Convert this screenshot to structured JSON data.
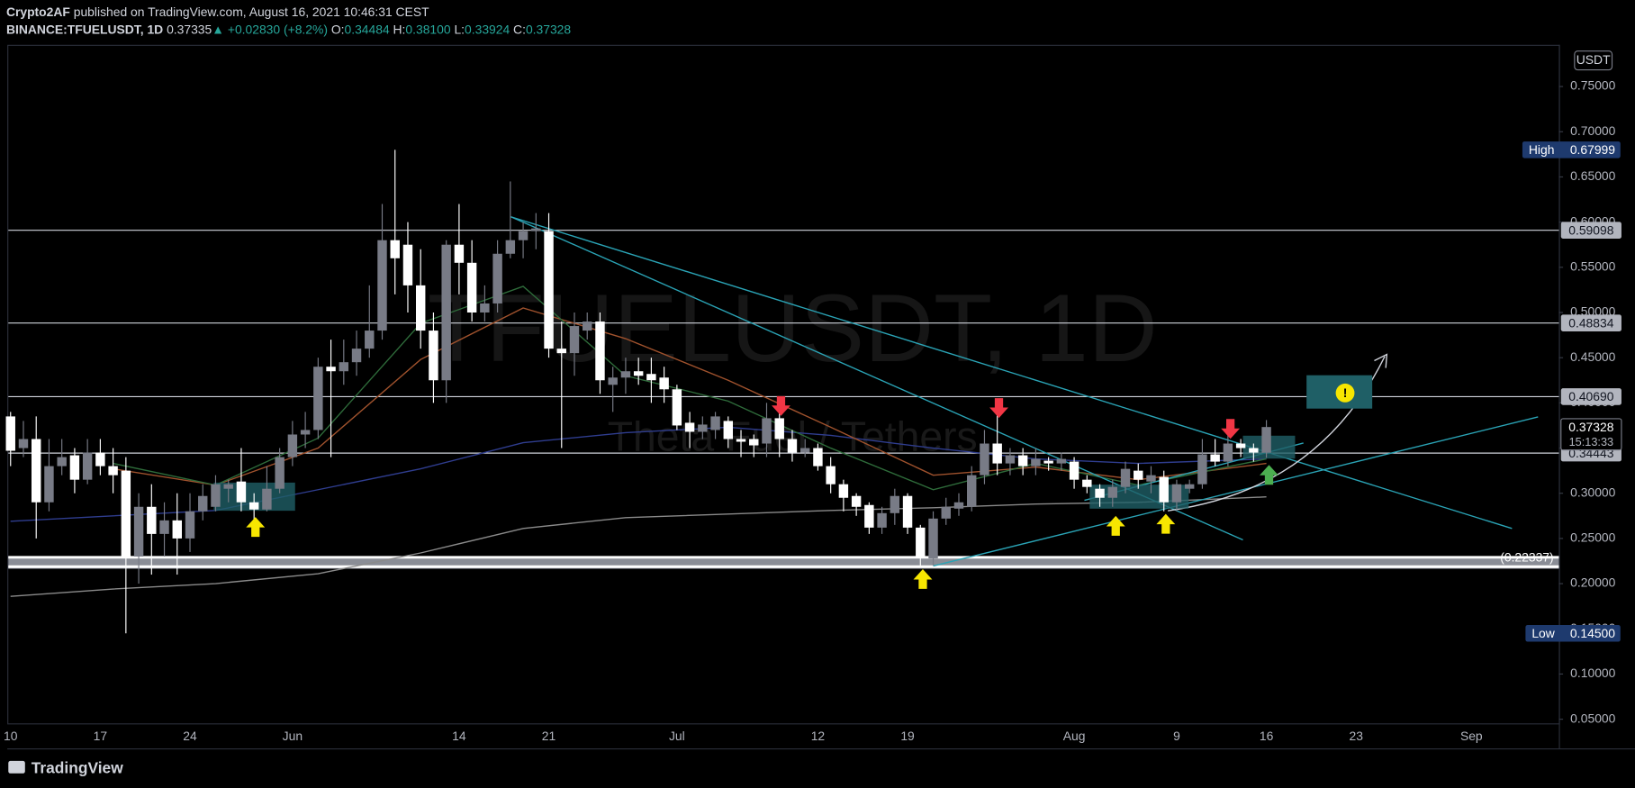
{
  "header": {
    "author": "Crypto2AF",
    "published": "published on TradingView.com, August 16, 2021 10:46:31 CEST",
    "symbol": "BINANCE:TFUELUSDT, 1D",
    "last": "0.37335",
    "arrow": "▲",
    "change": "+0.02830 (+8.2%)",
    "ohlc": [
      {
        "label": "O:",
        "value": "0.34484"
      },
      {
        "label": "H:",
        "value": "0.38100"
      },
      {
        "label": "L:",
        "value": "0.33924"
      },
      {
        "label": "C:",
        "value": "0.37328"
      }
    ]
  },
  "watermark": {
    "symbol": "TFUELUSDT, 1D",
    "name": "Theta Fuel / Tethers"
  },
  "annotation": {
    "icon": "!"
  },
  "footer": {
    "brand": "TradingView"
  },
  "chart_data": {
    "type": "candlestick",
    "currency": "USDT",
    "up_color": "#787b86",
    "down_color": "#ffffff",
    "grid": false,
    "categories": [
      "10",
      null,
      null,
      null,
      null,
      null,
      null,
      "17",
      null,
      null,
      null,
      null,
      null,
      null,
      "24",
      null,
      null,
      null,
      null,
      null,
      null,
      null,
      "Jun",
      null,
      null,
      null,
      null,
      null,
      null,
      null,
      null,
      null,
      null,
      null,
      null,
      "14",
      null,
      null,
      null,
      null,
      null,
      null,
      "21",
      null,
      null,
      null,
      null,
      null,
      null,
      null,
      null,
      null,
      "Jul",
      null,
      null,
      null,
      null,
      null,
      null,
      null,
      null,
      null,
      null,
      "12",
      null,
      null,
      null,
      null,
      null,
      null,
      "19",
      null,
      null,
      null,
      null,
      null,
      null,
      null,
      null,
      null,
      null,
      null,
      null,
      "Aug",
      null,
      null,
      null,
      null,
      null,
      null,
      null,
      "9",
      null,
      null,
      null,
      null,
      null,
      null,
      "16",
      null,
      null,
      null,
      null,
      null,
      null,
      "23",
      null,
      null,
      null,
      null,
      null,
      null,
      null,
      null,
      "Sep",
      null,
      null,
      null,
      null,
      null,
      null
    ],
    "open": [
      0.385,
      0.35,
      0.36,
      0.29,
      0.33,
      0.342,
      0.315,
      0.345,
      0.33,
      0.325,
      0.23,
      0.285,
      0.255,
      0.27,
      0.25,
      0.28,
      0.285,
      0.305,
      0.313,
      0.29,
      0.282,
      0.305,
      0.34,
      0.365,
      0.37,
      0.44,
      0.435,
      0.445,
      0.46,
      0.48,
      0.58,
      0.575,
      0.53,
      0.48,
      0.425,
      0.575,
      0.555,
      0.5,
      0.51,
      0.565,
      0.58,
      0.59,
      0.59,
      0.46,
      0.455,
      0.48,
      0.49,
      0.42,
      0.428,
      0.435,
      0.432,
      0.428,
      0.415,
      0.378,
      0.368,
      0.37,
      0.38,
      0.36,
      0.36,
      0.355,
      0.383,
      0.36,
      0.345,
      0.35,
      0.33,
      0.31,
      0.297,
      0.287,
      0.262,
      0.278,
      0.297,
      0.262,
      0.228,
      0.272,
      0.283,
      0.285,
      0.32,
      0.355,
      0.333,
      0.342,
      0.33,
      0.336,
      0.333,
      0.335,
      0.315,
      0.305,
      0.295,
      0.307,
      0.325,
      0.313,
      0.318,
      0.29,
      0.305,
      0.31,
      0.343,
      0.335,
      0.355,
      0.35,
      0.34484,
      null,
      null,
      null,
      null,
      null,
      null,
      null,
      null,
      null,
      null,
      null,
      null,
      null,
      null,
      null,
      null,
      null,
      null,
      null,
      null,
      null,
      null
    ],
    "high": [
      0.39,
      0.38,
      0.385,
      0.36,
      0.36,
      0.35,
      0.36,
      0.36,
      0.35,
      0.34,
      0.3,
      0.31,
      0.29,
      0.3,
      0.3,
      0.31,
      0.32,
      0.315,
      0.35,
      0.3,
      0.33,
      0.35,
      0.38,
      0.39,
      0.45,
      0.47,
      0.47,
      0.48,
      0.53,
      0.62,
      0.67999,
      0.6,
      0.57,
      0.5,
      0.58,
      0.62,
      0.58,
      0.53,
      0.58,
      0.645,
      0.6,
      0.61,
      0.61,
      0.49,
      0.5,
      0.5,
      0.5,
      0.44,
      0.45,
      0.45,
      0.45,
      0.44,
      0.42,
      0.39,
      0.385,
      0.39,
      0.385,
      0.37,
      0.365,
      0.4,
      0.39,
      0.37,
      0.36,
      0.355,
      0.34,
      0.315,
      0.3,
      0.29,
      0.285,
      0.305,
      0.3,
      0.265,
      0.28,
      0.295,
      0.3,
      0.33,
      0.37,
      0.4,
      0.35,
      0.35,
      0.35,
      0.34,
      0.345,
      0.34,
      0.32,
      0.31,
      0.315,
      0.335,
      0.333,
      0.33,
      0.325,
      0.315,
      0.315,
      0.36,
      0.36,
      0.37,
      0.36,
      0.355,
      0.381,
      null,
      null,
      null,
      null,
      null,
      null,
      null,
      null,
      null,
      null,
      null,
      null,
      null,
      null,
      null,
      null,
      null,
      null,
      null,
      null,
      null,
      null
    ],
    "low": [
      0.33,
      0.34,
      0.25,
      0.28,
      0.32,
      0.3,
      0.31,
      0.32,
      0.3,
      0.145,
      0.2,
      0.21,
      0.23,
      0.21,
      0.235,
      0.27,
      0.28,
      0.29,
      0.28,
      0.27,
      0.28,
      0.3,
      0.33,
      0.35,
      0.36,
      0.34,
      0.42,
      0.43,
      0.45,
      0.47,
      0.52,
      0.5,
      0.46,
      0.4,
      0.4,
      0.52,
      0.49,
      0.49,
      0.5,
      0.56,
      0.56,
      0.57,
      0.45,
      0.35,
      0.43,
      0.47,
      0.41,
      0.39,
      0.41,
      0.42,
      0.4,
      0.4,
      0.37,
      0.35,
      0.36,
      0.36,
      0.35,
      0.34,
      0.34,
      0.34,
      0.34,
      0.335,
      0.34,
      0.325,
      0.3,
      0.28,
      0.275,
      0.255,
      0.255,
      0.265,
      0.255,
      0.22,
      0.22,
      0.265,
      0.275,
      0.28,
      0.31,
      0.32,
      0.32,
      0.32,
      0.32,
      0.325,
      0.325,
      0.305,
      0.3,
      0.285,
      0.285,
      0.3,
      0.305,
      0.3,
      0.28,
      0.28,
      0.3,
      0.305,
      0.33,
      0.33,
      0.34,
      0.335,
      0.33924,
      null,
      null,
      null,
      null,
      null,
      null,
      null,
      null,
      null,
      null,
      null,
      null,
      null,
      null,
      null,
      null,
      null,
      null,
      null,
      null,
      null,
      null
    ],
    "close": [
      0.347,
      0.36,
      0.29,
      0.33,
      0.34,
      0.315,
      0.345,
      0.33,
      0.32,
      0.23,
      0.285,
      0.255,
      0.27,
      0.25,
      0.28,
      0.297,
      0.31,
      0.31,
      0.29,
      0.282,
      0.305,
      0.34,
      0.365,
      0.37,
      0.44,
      0.435,
      0.445,
      0.46,
      0.48,
      0.58,
      0.56,
      0.53,
      0.48,
      0.425,
      0.575,
      0.555,
      0.5,
      0.51,
      0.565,
      0.58,
      0.59,
      0.593,
      0.46,
      0.455,
      0.485,
      0.49,
      0.425,
      0.428,
      0.435,
      0.43,
      0.425,
      0.415,
      0.375,
      0.368,
      0.376,
      0.385,
      0.36,
      0.357,
      0.353,
      0.383,
      0.36,
      0.345,
      0.35,
      0.33,
      0.31,
      0.295,
      0.285,
      0.262,
      0.278,
      0.297,
      0.262,
      0.228,
      0.272,
      0.285,
      0.29,
      0.32,
      0.355,
      0.333,
      0.342,
      0.33,
      0.338,
      0.333,
      0.338,
      0.315,
      0.307,
      0.295,
      0.307,
      0.327,
      0.315,
      0.32,
      0.29,
      0.31,
      0.31,
      0.343,
      0.335,
      0.355,
      0.35,
      0.345,
      0.37328,
      null,
      null,
      null,
      null,
      null,
      null,
      null,
      null,
      null,
      null,
      null,
      null,
      null,
      null,
      null,
      null,
      null,
      null,
      null,
      null,
      null,
      null
    ],
    "ylim": [
      0.0454,
      0.795
    ],
    "yticks": [
      {
        "value": 0.05,
        "label": "0.05000"
      },
      {
        "value": 0.1,
        "label": "0.10000"
      },
      {
        "value": 0.15,
        "label": "0.15000"
      },
      {
        "value": 0.2,
        "label": "0.20000"
      },
      {
        "value": 0.25,
        "label": "0.25000"
      },
      {
        "value": 0.3,
        "label": "0.30000"
      },
      {
        "value": 0.35,
        "label": "0.35000"
      },
      {
        "value": 0.4,
        "label": "0.40000"
      },
      {
        "value": 0.45,
        "label": "0.45000"
      },
      {
        "value": 0.5,
        "label": "0.50000"
      },
      {
        "value": 0.55,
        "label": "0.55000"
      },
      {
        "value": 0.6,
        "label": "0.60000"
      },
      {
        "value": 0.65,
        "label": "0.65000"
      },
      {
        "value": 0.7,
        "label": "0.70000"
      },
      {
        "value": 0.75,
        "label": "0.75000"
      }
    ],
    "high_marker": {
      "label": "High",
      "value": 0.67999
    },
    "low_marker": {
      "label": "Low",
      "value": {
        "value": 0.145,
        "label": "0.14500"
      }
    },
    "last_price": {
      "value": 0.37328,
      "countdown": "15:13:33"
    },
    "levels": [
      {
        "value": 0.59098,
        "label": "0.59098"
      },
      {
        "value": 0.48834,
        "label": "0.48834"
      },
      {
        "value": 0.4069,
        "label": "0.40690"
      },
      {
        "value": 0.34443,
        "label": "0.34443"
      },
      {
        "value": 0.22337,
        "label": "(0.22337)"
      }
    ],
    "moving_averages": [
      {
        "color": "#2f3d8f",
        "x": [
          0,
          8,
          16,
          24,
          32,
          40,
          48,
          56,
          64,
          72,
          80,
          88,
          98
        ],
        "values": [
          0.269,
          0.275,
          0.281,
          0.304,
          0.327,
          0.356,
          0.367,
          0.373,
          0.364,
          0.35,
          0.338,
          0.333,
          0.338
        ]
      },
      {
        "color": "#8a8a8a",
        "x": [
          0,
          8,
          16,
          24,
          32,
          40,
          48,
          56,
          64,
          72,
          80,
          88,
          98
        ],
        "values": [
          0.186,
          0.194,
          0.2,
          0.211,
          0.234,
          0.261,
          0.273,
          0.277,
          0.281,
          0.284,
          0.288,
          0.29,
          0.296
        ]
      },
      {
        "color": "#a0522d",
        "x": [
          8,
          16,
          24,
          32,
          40,
          48,
          56,
          64,
          72,
          80,
          88,
          98
        ],
        "values": [
          0.327,
          0.309,
          0.35,
          0.448,
          0.505,
          0.471,
          0.425,
          0.373,
          0.32,
          0.329,
          0.315,
          0.333
        ]
      },
      {
        "color": "#2e6b3a",
        "x": [
          8,
          16,
          24,
          32,
          40,
          48,
          56,
          64,
          72,
          80,
          88,
          98
        ],
        "values": [
          0.333,
          0.309,
          0.361,
          0.488,
          0.529,
          0.43,
          0.402,
          0.35,
          0.304,
          0.333,
          0.309,
          0.338
        ]
      }
    ]
  }
}
